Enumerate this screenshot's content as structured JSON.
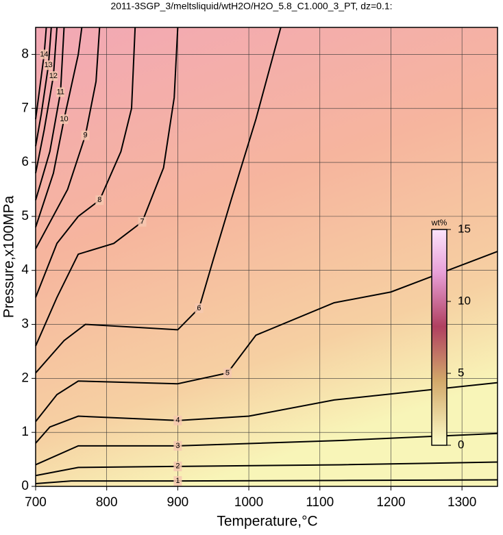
{
  "chart_data": {
    "type": "contour",
    "title": "2011-3SGP_3/meltsliquid/wtH2O/H2O_5.8_C1.000_3_PT, dz=0.1:",
    "x_label": "Temperature,°C",
    "y_label": "Pressure,x100MPa",
    "xlim": [
      700,
      1350
    ],
    "ylim": [
      0,
      8.5
    ],
    "xticks": [
      700,
      800,
      900,
      1000,
      1100,
      1200,
      1300
    ],
    "yticks": [
      0,
      1,
      2,
      3,
      4,
      5,
      6,
      7,
      8
    ],
    "grid": true,
    "color": "#000000",
    "contours": [
      {
        "level": 1,
        "x": [
          700,
          750,
          900,
          1130,
          1350
        ],
        "y": [
          0.05,
          0.1,
          0.1,
          0.11,
          0.12
        ]
      },
      {
        "level": 2,
        "x": [
          700,
          760,
          900,
          1130,
          1350
        ],
        "y": [
          0.2,
          0.35,
          0.37,
          0.4,
          0.45
        ]
      },
      {
        "level": 3,
        "x": [
          700,
          760,
          900,
          1130,
          1350
        ],
        "y": [
          0.4,
          0.75,
          0.75,
          0.85,
          0.98
        ]
      },
      {
        "level": 4,
        "x": [
          700,
          720,
          760,
          900,
          1000,
          1120,
          1350
        ],
        "y": [
          0.8,
          1.1,
          1.3,
          1.22,
          1.3,
          1.6,
          1.92
        ]
      },
      {
        "level": 5,
        "x": [
          700,
          730,
          760,
          900,
          970,
          1010,
          1120,
          1200,
          1350
        ],
        "y": [
          1.2,
          1.7,
          1.95,
          1.9,
          2.1,
          2.8,
          3.4,
          3.6,
          4.35
        ]
      },
      {
        "level": 6,
        "x": [
          700,
          740,
          770,
          900,
          930,
          950,
          975,
          1010,
          1045
        ],
        "y": [
          2.1,
          2.7,
          3.0,
          2.9,
          3.3,
          4.2,
          5.3,
          6.8,
          8.5
        ]
      },
      {
        "level": 7,
        "x": [
          700,
          730,
          760,
          810,
          850,
          880,
          895,
          900
        ],
        "y": [
          2.6,
          3.5,
          4.3,
          4.5,
          4.9,
          5.9,
          7.2,
          8.5
        ]
      },
      {
        "level": 8,
        "x": [
          700,
          730,
          760,
          790,
          820,
          835,
          840
        ],
        "y": [
          3.5,
          4.5,
          5.0,
          5.3,
          6.2,
          7.0,
          8.5
        ]
      },
      {
        "level": 9,
        "x": [
          700,
          745,
          770,
          785,
          790
        ],
        "y": [
          4.4,
          5.5,
          6.5,
          7.5,
          8.5
        ]
      },
      {
        "level": 10,
        "x": [
          700,
          725,
          740,
          760,
          765
        ],
        "y": [
          4.8,
          5.8,
          6.8,
          8.0,
          8.5
        ]
      },
      {
        "level": 11,
        "x": [
          700,
          720,
          735,
          740
        ],
        "y": [
          5.3,
          6.2,
          7.3,
          8.5
        ]
      },
      {
        "level": 12,
        "x": [
          700,
          712,
          725,
          730
        ],
        "y": [
          5.8,
          6.6,
          7.6,
          8.5
        ]
      },
      {
        "level": 13,
        "x": [
          700,
          708,
          718,
          722
        ],
        "y": [
          6.3,
          6.9,
          7.8,
          8.5
        ]
      },
      {
        "level": 14,
        "x": [
          700,
          705,
          712,
          715
        ],
        "y": [
          6.8,
          7.3,
          8.0,
          8.5
        ]
      }
    ],
    "colorbar": {
      "label": "wt%",
      "lim": [
        0,
        15
      ],
      "ticks": [
        0,
        5,
        10,
        15
      ]
    }
  }
}
